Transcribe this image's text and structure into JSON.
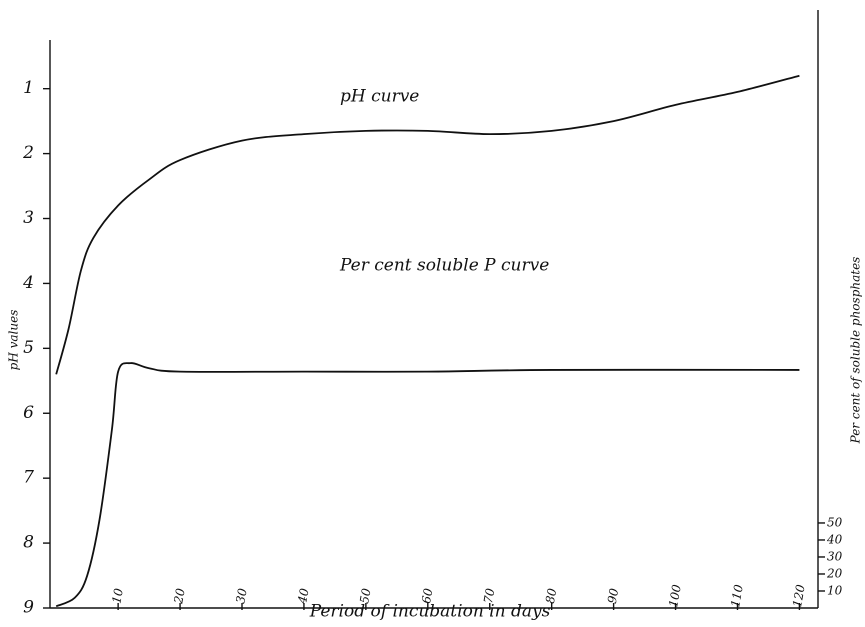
{
  "chart_data": {
    "type": "line",
    "x_label": "Period of incubation in days",
    "y_label": "pH values",
    "y2_label": "Per cent of soluble phosphates",
    "annotations": [
      "pH curve",
      "Per cent soluble P curve"
    ],
    "xlim": [
      -1,
      123
    ],
    "xticks": [
      10,
      20,
      30,
      40,
      50,
      60,
      70,
      80,
      90,
      100,
      110,
      120
    ],
    "ylim": [
      9,
      0.25
    ],
    "yticks": [
      1,
      2,
      3,
      4,
      5,
      6,
      7,
      8,
      9
    ],
    "y2lim": [
      0,
      334
    ],
    "y2ticks": [
      10,
      20,
      30,
      40,
      50
    ],
    "grid": false,
    "series": [
      {
        "name": "pH curve",
        "color": "#111111",
        "x": [
          0,
          2,
          4,
          6,
          10,
          15,
          20,
          30,
          40,
          50,
          60,
          70,
          80,
          90,
          100,
          110,
          120
        ],
        "values": [
          5.4,
          4.7,
          3.8,
          3.3,
          2.8,
          2.4,
          2.1,
          1.8,
          1.7,
          1.65,
          1.65,
          1.7,
          1.65,
          1.5,
          1.25,
          1.05,
          0.8
        ]
      },
      {
        "name": "Per cent soluble P curve",
        "color": "#111111",
        "axis": "y2",
        "x": [
          0,
          3,
          5,
          7,
          9,
          10,
          12,
          15,
          20,
          40,
          60,
          80,
          120
        ],
        "values": [
          1,
          6,
          19,
          52,
          105,
          139,
          144,
          141,
          139,
          139,
          139,
          140,
          140
        ]
      }
    ]
  }
}
